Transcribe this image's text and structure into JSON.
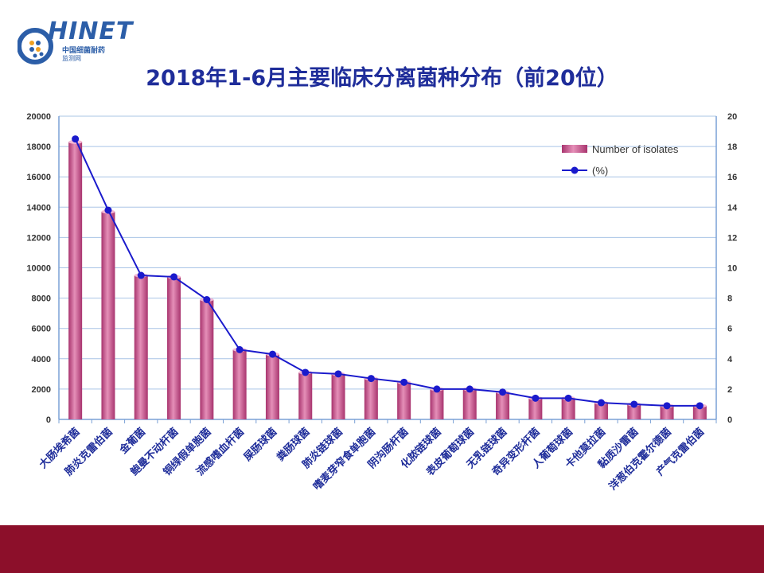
{
  "logo": {
    "name": "HINET",
    "subtitle_cn": "中国细菌耐药",
    "subtitle_cn2": "监测网"
  },
  "colors": {
    "title": "#1f2d9a",
    "bar": "#e58fb8",
    "bar_dark": "#a8346e",
    "line": "#1a1acc",
    "footer": "#8c0f2a"
  },
  "chart_data": {
    "type": "bar",
    "title": "2018年1-6月主要临床分离菌种分布（前20位）",
    "categories": [
      "大肠埃希菌",
      "肺炎克雷伯菌",
      "金葡菌",
      "鲍曼不动杆菌",
      "铜绿假单胞菌",
      "流感嗜血杆菌",
      "屎肠球菌",
      "粪肠球菌",
      "肺炎链球菌",
      "嗜麦芽窄食单胞菌",
      "阴沟肠杆菌",
      "化脓链球菌",
      "表皮葡萄球菌",
      "无乳链球菌",
      "奇异变形杆菌",
      "人葡萄球菌",
      "卡他莫拉菌",
      "黏质沙雷菌",
      "洋葱伯克霍尔德菌",
      "产气克雷伯菌"
    ],
    "series": [
      {
        "name": "Number of isolates",
        "type": "bar",
        "axis": "left",
        "values": [
          18300,
          13700,
          9500,
          9400,
          7900,
          4600,
          4300,
          3100,
          3000,
          2700,
          2450,
          2000,
          2000,
          1800,
          1400,
          1400,
          1100,
          1000,
          900,
          900
        ]
      },
      {
        "name": "(%)",
        "type": "line",
        "axis": "right",
        "values": [
          18.5,
          13.8,
          9.5,
          9.4,
          7.9,
          4.6,
          4.3,
          3.1,
          3.0,
          2.7,
          2.45,
          2.0,
          2.0,
          1.8,
          1.4,
          1.4,
          1.1,
          1.0,
          0.9,
          0.9
        ]
      }
    ],
    "y_left": {
      "min": 0,
      "max": 20000,
      "ticks": [
        "0",
        "2000",
        "4000",
        "6000",
        "8000",
        "10000",
        "12000",
        "14000",
        "16000",
        "18000",
        "20000"
      ]
    },
    "y_right": {
      "min": 0,
      "max": 20,
      "ticks": [
        "0",
        "2",
        "4",
        "6",
        "8",
        "10",
        "12",
        "14",
        "16",
        "18",
        "20"
      ]
    },
    "grid": true,
    "legend_position": "top-right"
  }
}
